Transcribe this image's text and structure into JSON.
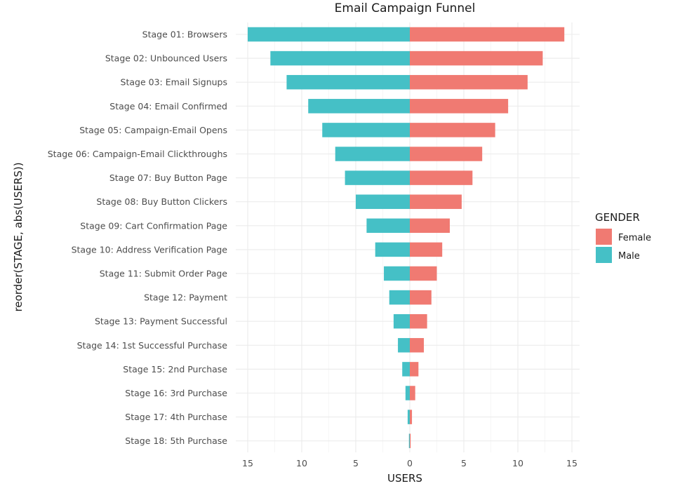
{
  "chart_data": {
    "type": "bar",
    "orientation": "horizontal-diverging",
    "title": "Email Campaign Funnel",
    "xlabel": "USERS",
    "ylabel": "reorder(STAGE, abs(USERS))",
    "xlim": [
      -15,
      15
    ],
    "xticks": [
      -15,
      -10,
      -5,
      0,
      5,
      10,
      15
    ],
    "xtick_labels": [
      "15",
      "10",
      "5",
      "0",
      "5",
      "10",
      "15"
    ],
    "grid": true,
    "legend_title": "GENDER",
    "legend_position": "right",
    "categories": [
      "Stage 01: Browsers",
      "Stage 02: Unbounced Users",
      "Stage 03: Email Signups",
      "Stage 04: Email Confirmed",
      "Stage 05: Campaign-Email Opens",
      "Stage 06: Campaign-Email Clickthroughs",
      "Stage 07: Buy Button Page",
      "Stage 08: Buy Button Clickers",
      "Stage 09: Cart Confirmation Page",
      "Stage 10: Address Verification Page",
      "Stage 11: Submit Order Page",
      "Stage 12: Payment",
      "Stage 13: Payment Successful",
      "Stage 14: 1st Successful Purchase",
      "Stage 15: 2nd Purchase",
      "Stage 16: 3rd Purchase",
      "Stage 17: 4th Purchase",
      "Stage 18: 5th Purchase"
    ],
    "series": [
      {
        "name": "Female",
        "color": "#F07A72",
        "values": [
          14.3,
          12.3,
          10.9,
          9.1,
          7.9,
          6.7,
          5.8,
          4.8,
          3.7,
          3.0,
          2.5,
          2.0,
          1.6,
          1.3,
          0.8,
          0.5,
          0.2,
          0.05
        ]
      },
      {
        "name": "Male",
        "color": "#45C0C6",
        "values": [
          -15.0,
          -12.9,
          -11.4,
          -9.4,
          -8.1,
          -6.9,
          -6.0,
          -5.0,
          -4.0,
          -3.2,
          -2.4,
          -1.9,
          -1.5,
          -1.1,
          -0.7,
          -0.4,
          -0.2,
          -0.08
        ]
      }
    ]
  }
}
